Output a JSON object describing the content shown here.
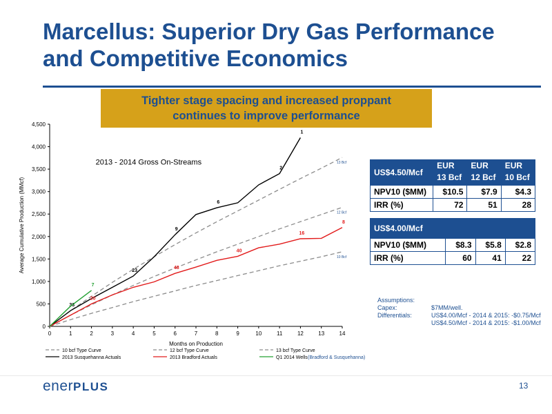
{
  "slide": {
    "title_line1": "Marcellus:  Superior Dry Gas Performance",
    "title_line2": "and Competitive Economics",
    "callout_line1": "Tighter stage spacing and increased proppant",
    "callout_line2": "continues to improve performance",
    "page_number": "13",
    "logo_part1": "ener",
    "logo_part2": "PLUS"
  },
  "colors": {
    "title_blue": "#1d4f91",
    "callout_gold": "#d6a11a",
    "susquehanna": "#000000",
    "bradford": "#e21a1a",
    "q1_2014": "#23a033",
    "type_curve": "#8c8c8c"
  },
  "chart_data": {
    "type": "line",
    "subtitle": "2013 - 2014 Gross On-Streams",
    "xlabel": "Months on Production",
    "ylabel": "Average Cumulative Production (MMcf)",
    "xlim": [
      0,
      14
    ],
    "ylim": [
      0,
      4500
    ],
    "x_ticks": [
      "0",
      "1",
      "2",
      "3",
      "4",
      "5",
      "6",
      "7",
      "8",
      "9",
      "10",
      "11",
      "12",
      "13",
      "14"
    ],
    "y_ticks": [
      "0",
      "500",
      "1,000",
      "1,500",
      "2,000",
      "2,500",
      "3,000",
      "3,500",
      "4,000",
      "4,500"
    ],
    "series": [
      {
        "name": "10 bcf Type Curve",
        "style": "dashed",
        "color": "#8c8c8c",
        "x": [
          0,
          1,
          2,
          3,
          4,
          5,
          6,
          7,
          8,
          9,
          10,
          11,
          12,
          13,
          14
        ],
        "y": [
          0,
          150,
          290,
          420,
          550,
          670,
          790,
          910,
          1020,
          1130,
          1240,
          1350,
          1450,
          1550,
          1660
        ],
        "end_label": "10 Bcf"
      },
      {
        "name": "12 bcf Type Curve",
        "style": "dashed",
        "color": "#8c8c8c",
        "x": [
          0,
          1,
          2,
          3,
          4,
          5,
          6,
          7,
          8,
          9,
          10,
          11,
          12,
          13,
          14
        ],
        "y": [
          0,
          250,
          480,
          700,
          910,
          1110,
          1300,
          1480,
          1660,
          1830,
          2000,
          2170,
          2330,
          2490,
          2650
        ],
        "end_label": "12 Bcf"
      },
      {
        "name": "13 bcf Type Curve",
        "style": "dashed",
        "color": "#8c8c8c",
        "x": [
          0,
          1,
          2,
          3,
          4,
          5,
          6,
          7,
          8,
          9,
          10,
          11,
          12,
          13,
          14
        ],
        "y": [
          0,
          350,
          670,
          980,
          1270,
          1550,
          1820,
          2080,
          2330,
          2570,
          2810,
          3050,
          3290,
          3520,
          3760
        ],
        "end_label": "13 Bcf"
      },
      {
        "name": "2013 Susquehanna Actuals",
        "style": "solid",
        "color": "#000000",
        "x": [
          0,
          1,
          2,
          3,
          4,
          5,
          6,
          7,
          8,
          9,
          10,
          11,
          12
        ],
        "y": [
          0,
          350,
          620,
          870,
          1120,
          1550,
          2040,
          2490,
          2640,
          2750,
          3150,
          3400,
          4200
        ],
        "point_labels": [
          {
            "x": 1,
            "y": 350,
            "text": "33"
          },
          {
            "x": 4,
            "y": 1120,
            "text": "23"
          },
          {
            "x": 6,
            "y": 2040,
            "text": "9"
          },
          {
            "x": 8,
            "y": 2640,
            "text": "6"
          },
          {
            "x": 11,
            "y": 3400,
            "text": "2"
          },
          {
            "x": 12,
            "y": 4200,
            "text": "1"
          }
        ]
      },
      {
        "name": "2013 Bradford Actuals",
        "style": "solid",
        "color": "#e21a1a",
        "x": [
          0,
          1,
          2,
          3,
          4,
          5,
          6,
          7,
          8,
          9,
          10,
          11,
          12,
          13,
          14
        ],
        "y": [
          0,
          250,
          500,
          700,
          870,
          990,
          1180,
          1320,
          1470,
          1560,
          1750,
          1830,
          1950,
          1960,
          2200
        ],
        "point_labels": [
          {
            "x": 2,
            "y": 500,
            "text": "20"
          },
          {
            "x": 6,
            "y": 1180,
            "text": "48"
          },
          {
            "x": 9,
            "y": 1560,
            "text": "40"
          },
          {
            "x": 12,
            "y": 1950,
            "text": "16"
          },
          {
            "x": 14,
            "y": 2200,
            "text": "8"
          }
        ]
      },
      {
        "name": "Q1 2014 Wells",
        "style": "solid",
        "color": "#23a033",
        "x": [
          0,
          1,
          2
        ],
        "y": [
          0,
          450,
          800
        ],
        "point_labels": [
          {
            "x": 2,
            "y": 800,
            "text": "7"
          }
        ]
      }
    ],
    "legend_note": "(Bradford & Susquehanna)",
    "legend_position": "bottom"
  },
  "tables": {
    "t1": {
      "header": "US$4.50/Mcf",
      "eur": [
        [
          "EUR",
          "13 Bcf"
        ],
        [
          "EUR",
          "12 Bcf"
        ],
        [
          "EUR",
          "10 Bcf"
        ]
      ],
      "rows": [
        {
          "label": "NPV10 ($MM)",
          "values": [
            "$10.5",
            "$7.9",
            "$4.3"
          ]
        },
        {
          "label": "IRR (%)",
          "values": [
            "72",
            "51",
            "28"
          ]
        }
      ]
    },
    "t2": {
      "header": "US$4.00/Mcf",
      "rows": [
        {
          "label": "NPV10 ($MM)",
          "values": [
            "$8.3",
            "$5.8",
            "$2.8"
          ]
        },
        {
          "label": "IRR (%)",
          "values": [
            "60",
            "41",
            "22"
          ]
        }
      ]
    }
  },
  "assumptions": {
    "heading": "Assumptions:",
    "capex_label": "Capex:",
    "capex_value": "$7MM/well.",
    "diff_label": "Differentials:",
    "diff_line1": "US$4.00/Mcf - 2014 & 2015:  -$0.75/Mcf",
    "diff_line2": "US$4.50/Mcf - 2014 & 2015:  -$1.00/Mcf"
  }
}
